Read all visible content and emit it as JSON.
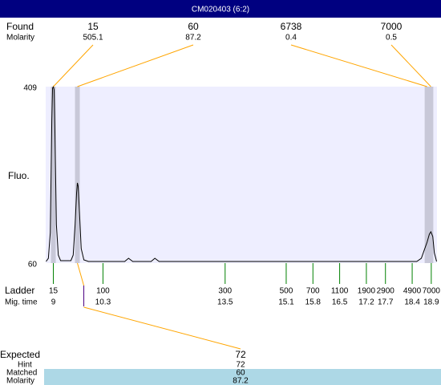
{
  "header": {
    "title": "CM020403 (6:2)"
  },
  "chart_data": {
    "type": "line",
    "ylabel": "Fluo.",
    "ylim": [
      60,
      409
    ],
    "yticks": [
      60,
      409
    ],
    "xlim": [
      8.8,
      19.05
    ],
    "x": [
      8.81,
      8.87,
      8.92,
      8.96,
      8.98,
      9.0,
      9.02,
      9.04,
      9.08,
      9.13,
      9.19,
      9.46,
      9.52,
      9.57,
      9.61,
      9.63,
      9.65,
      9.69,
      9.73,
      9.8,
      9.92,
      10.87,
      10.97,
      11.08,
      11.56,
      11.66,
      11.77,
      18.52,
      18.64,
      18.73,
      18.79,
      18.85,
      18.89,
      18.94,
      18.98,
      19.04
    ],
    "values": [
      63.2,
      69.5,
      120.3,
      342.4,
      405.8,
      409,
      402.7,
      326.5,
      136.1,
      75.9,
      64.8,
      64.8,
      75.9,
      136.1,
      199.6,
      218.6,
      212.3,
      152,
      88.6,
      66.3,
      63.2,
      63.2,
      69.5,
      63.2,
      63.2,
      69.5,
      63.2,
      63.2,
      69.5,
      88.6,
      101.2,
      117.1,
      121.9,
      112.4,
      80.6,
      63.2
    ],
    "color": "#000000",
    "found": {
      "label": "Found",
      "molarity_label": "Molarity",
      "sizes": [
        15,
        60,
        6738,
        7000
      ],
      "molarity": [
        505.1,
        87.2,
        0.4,
        0.5
      ],
      "times": [
        9.0,
        9.63,
        18.79,
        18.89
      ]
    },
    "ladder": {
      "label": "Ladder",
      "time_label": "Mig. time",
      "sizes": [
        15,
        100,
        300,
        500,
        700,
        1100,
        1900,
        2900,
        4900,
        7000
      ],
      "times": [
        9,
        10.3,
        13.5,
        15.1,
        15.8,
        16.5,
        17.2,
        17.7,
        18.4,
        18.9
      ]
    }
  },
  "expected": {
    "label": "Expected",
    "value": 72,
    "hint_label": "Hint",
    "hint": 72,
    "matched_label": "Matched",
    "matched": 60,
    "molarity_label": "Molarity",
    "molarity": 87.2
  }
}
